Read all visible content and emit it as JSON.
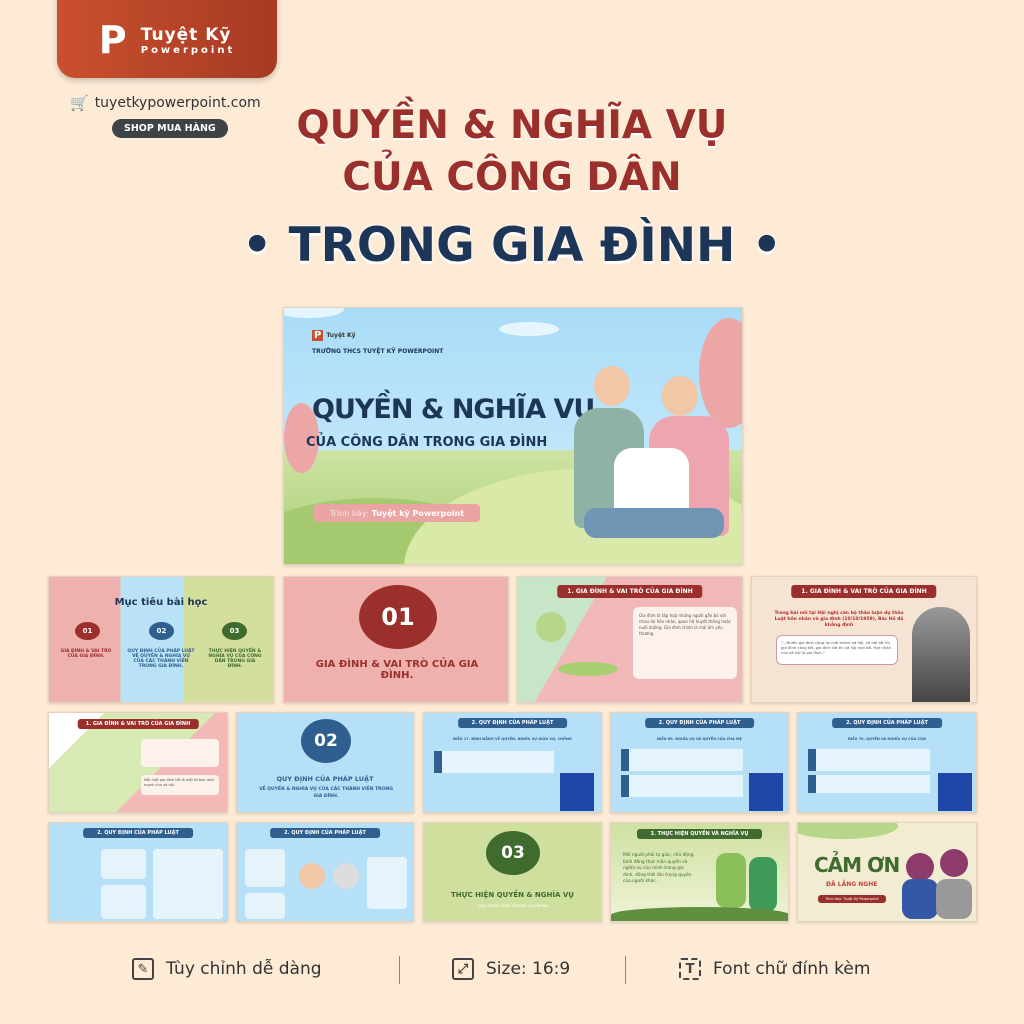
{
  "brand": {
    "name": "Tuyệt Kỹ",
    "sub": "Powerpoint",
    "logo_letter": "P",
    "website": "tuyetkypowerpoint.com",
    "shop_button": "SHOP MUA HÀNG"
  },
  "title": {
    "line1": "QUYỀN & NGHĨA VỤ",
    "line2": "CỦA CÔNG DÂN",
    "line3": "• TRONG GIA ĐÌNH •"
  },
  "colors": {
    "background": "#fdebd6",
    "title_red": "#9b2f2c",
    "title_navy": "#1d3557",
    "brand": "#c04a2b"
  },
  "main_slide": {
    "school": "TRƯỜNG THCS TUYỆT KỸ POWERPOINT",
    "title": "QUYỀN & NGHĨA VỤ",
    "subtitle": "CỦA CÔNG DÂN TRONG GIA ĐÌNH",
    "presenter_label": "Trình bày:",
    "presenter": "Tuyệt kỹ Powerpoint"
  },
  "slides": {
    "objectives": {
      "title": "Mục tiêu bài học",
      "items": [
        {
          "num": "01",
          "text": "GIA ĐÌNH & VAI TRÒ CỦA GIA ĐÌNH."
        },
        {
          "num": "02",
          "text": "QUY ĐỊNH CỦA PHÁP LUẬT VỀ QUYỀN & NGHĨA VỤ CỦA CÁC THÀNH VIÊN TRONG GIA ĐÌNH."
        },
        {
          "num": "03",
          "text": "THỰC HIỆN QUYỀN & NGHĨA VỤ CỦA CÔNG DÂN TRONG GIA ĐÌNH."
        }
      ]
    },
    "section1": {
      "num": "01",
      "text": "GIA ĐÌNH & VAI TRÒ CỦA GIA ĐÌNH."
    },
    "s1_title": "1. GIA ĐÌNH & VAI TRÒ CỦA GIA ĐÌNH",
    "s1a_text": "Gia đình là tập hợp những người gắn bó với nhau do hôn nhân, quan hệ huyết thống hoặc nuôi dưỡng. Gia đình chính là mái ấm yêu thương.",
    "s1b_intro": "Trong bài nói tại Hội nghị cán bộ thảo luận dự thảo Luật hôn nhân và gia đình (10/10/1959), Bác Hồ đã khẳng định",
    "s1b_quote": "\"...Nhiều gia đình cộng lại mới thành xã hội, xã hội tốt thì gia đình càng tốt, gia đình tốt thì xã hội mới tốt. Hạt nhân của xã hội là gia đình.\"",
    "s1c_text": "Mỗi một gia đình tốt là một tế bào lành mạnh cho xã hội.",
    "section2": {
      "num": "02",
      "line1": "QUY ĐỊNH CỦA PHÁP LUẬT",
      "line2": "VỀ QUYỀN & NGHĨA VỤ CỦA CÁC THÀNH VIÊN TRONG GIA ĐÌNH."
    },
    "s2_title": "2. QUY ĐỊNH CỦA PHÁP LUẬT",
    "s2_sub": "VỀ QUYỀN VÀ NGHĨA VỤ CỦA CÁC THÀNH VIÊN TRONG GIA ĐÌNH",
    "s2a_article": "ĐIỀU 17. BÌNH ĐẲNG VỀ QUYỀN, NGHĨA VỤ GIỮA VỢ, CHỒNG",
    "s2b_article": "ĐIỀU 69. NGHĨA VỤ VÀ QUYỀN CỦA CHA MẸ",
    "s2c_article": "ĐIỀU 70. QUYỀN VÀ NGHĨA VỤ CỦA CON",
    "section3": {
      "num": "03",
      "line1": "THỰC HIỆN QUYỀN & NGHĨA VỤ",
      "line2": "CỦA CÔNG DÂN TRONG GIA ĐÌNH"
    },
    "s3_title": "3. THỰC HIỆN QUYỀN VÀ NGHĨA VỤ",
    "s3_text": "Mỗi người phải tự giác, chủ động, bình đẳng thực hiện quyền và nghĩa vụ của mình trong gia đình, đồng thời tôn trọng quyền của người khác.",
    "thanks": {
      "title": "CẢM ƠN",
      "sub": "ĐÃ LẮNG NGHE",
      "credit": "Trình bày: Tuyệt Kỹ Powerpoint"
    }
  },
  "features": [
    {
      "icon": "edit-icon",
      "label": "Tùy chỉnh dễ dàng"
    },
    {
      "icon": "resize-icon",
      "label": "Size: 16:9"
    },
    {
      "icon": "text-font-icon",
      "label": "Font chữ đính kèm"
    }
  ]
}
